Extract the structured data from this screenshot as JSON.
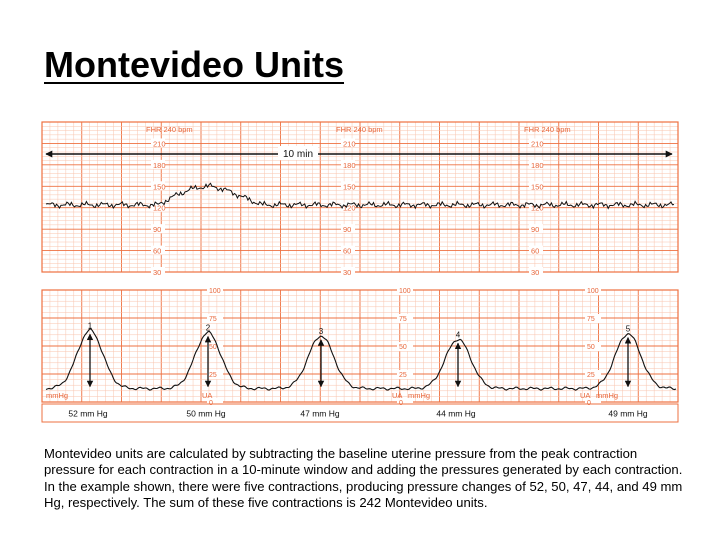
{
  "slide": {
    "title": "Montevideo Units",
    "caption": "Montevideo units are calculated by subtracting the baseline uterine pressure from the peak contraction pressure for each contraction in a 10-minute window and adding the pressures generated by each contraction. In the example shown, there were five contractions, producing pressure changes of 52, 50, 47, 44, and 49 mm Hg, respectively. The sum of these five contractions is 242 Montevideo units."
  },
  "colors": {
    "grid_major": "#ee7040",
    "grid_minor": "#f9c4ae",
    "label": "#e8663a",
    "trace": "#111111"
  },
  "fhr_panel": {
    "scale_label": "FHR 240 bpm",
    "scale_values": [
      "210",
      "180",
      "150",
      "120",
      "90",
      "60",
      "30"
    ],
    "window_label": "10 min"
  },
  "ua_panel": {
    "scale_values": [
      "100",
      "75",
      "50",
      "25",
      "0"
    ],
    "unit_label": "mmHg",
    "channel_label": "UA",
    "baseline_mmhg": 12,
    "contractions": [
      {
        "number": "1",
        "rise_label": "52 mm Hg",
        "rise": 52
      },
      {
        "number": "2",
        "rise_label": "50 mm Hg",
        "rise": 50
      },
      {
        "number": "3",
        "rise_label": "47 mm Hg",
        "rise": 47
      },
      {
        "number": "4",
        "rise_label": "44 mm Hg",
        "rise": 44
      },
      {
        "number": "5",
        "rise_label": "49 mm Hg",
        "rise": 49
      }
    ]
  }
}
